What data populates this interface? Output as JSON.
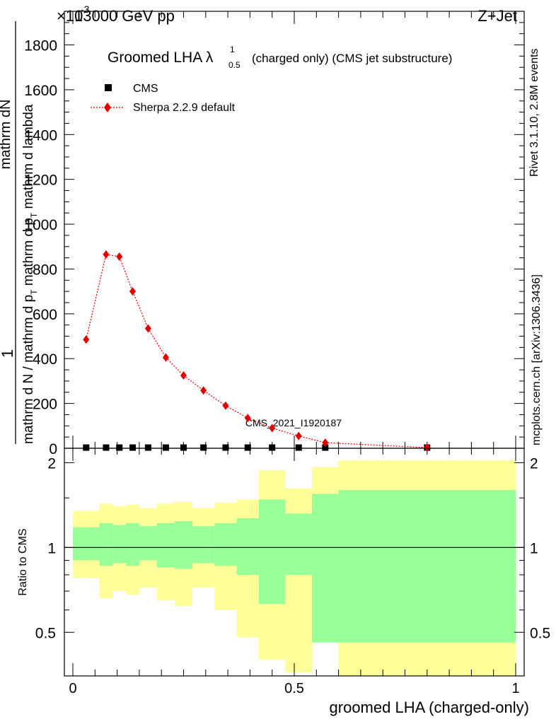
{
  "header": {
    "left": "13000 GeV pp",
    "right": "Z+Jet",
    "exponent_prefix": "×10",
    "exponent": "-3"
  },
  "side_labels": {
    "rivet": "Rivet 3.1.10,  2.8M events",
    "mcplots": "mcplots.cern.ch [arXiv:1306.3436]"
  },
  "watermark": "CMS_2021_I1920187",
  "chart_data": [
    {
      "type": "scatter",
      "title": "Groomed LHA λ",
      "title_sup": "1",
      "title_sub": "0.5",
      "title_suffix": "(charged only) (CMS jet substructure)",
      "ylabel_top": "1",
      "ylabel_num": "mathrm dN",
      "ylabel_den": "mathrm d N / mathrm d p",
      "ylabel_den_sub": "T",
      "ylabel_den_tail": " mathrm d p",
      "ylabel_den_sub2": "T",
      "ylabel_den_tail2": " mathrm d lambda",
      "xlim": [
        0,
        1
      ],
      "ylim": [
        0,
        1950
      ],
      "yticks": [
        0,
        200,
        400,
        600,
        800,
        1000,
        1200,
        1400,
        1600,
        1800
      ],
      "yticklabels": [
        "0",
        "200",
        "400",
        "600",
        "800",
        "1000",
        "1200",
        "1400",
        "1600",
        "1800"
      ],
      "legend_position": "top-left",
      "series": [
        {
          "name": "CMS",
          "color": "#000000",
          "marker": "square",
          "x": [
            0.03,
            0.075,
            0.105,
            0.135,
            0.17,
            0.21,
            0.25,
            0.295,
            0.345,
            0.395,
            0.45,
            0.51,
            0.57,
            0.8
          ],
          "values": [
            3,
            3,
            3,
            3,
            3,
            3,
            3,
            3,
            3,
            3,
            3,
            3,
            3,
            3
          ]
        },
        {
          "name": "Sherpa 2.2.9 default",
          "color": "#e00000",
          "marker": "diamond",
          "line": "dotted",
          "x": [
            0.03,
            0.075,
            0.105,
            0.135,
            0.17,
            0.21,
            0.25,
            0.295,
            0.345,
            0.395,
            0.45,
            0.51,
            0.57,
            0.8
          ],
          "values": [
            485,
            865,
            855,
            700,
            535,
            405,
            325,
            258,
            190,
            135,
            90,
            55,
            25,
            3
          ]
        }
      ]
    },
    {
      "type": "area",
      "ylabel": "Ratio to CMS",
      "xlabel": "groomed LHA (charged-only)",
      "xlim": [
        0,
        1
      ],
      "ylim": [
        0.35,
        2.25
      ],
      "xticks": [
        0,
        0.5,
        1
      ],
      "xticklabels": [
        "0",
        "0.5",
        "1"
      ],
      "yticks": [
        0.5,
        1,
        2
      ],
      "yticklabels": [
        "0.5",
        "1",
        "2"
      ],
      "reference_line": 1,
      "bins": [
        0,
        0.06,
        0.09,
        0.12,
        0.15,
        0.19,
        0.23,
        0.27,
        0.32,
        0.37,
        0.42,
        0.48,
        0.54,
        0.6,
        1.0
      ],
      "bands": [
        {
          "name": "total uncertainty",
          "color": "#ffff99",
          "lower": [
            0.78,
            0.66,
            0.7,
            0.68,
            0.72,
            0.65,
            0.62,
            0.72,
            0.6,
            0.48,
            0.4,
            0.36,
            0.53,
            0.35
          ],
          "upper": [
            1.35,
            1.43,
            1.4,
            1.42,
            1.38,
            1.43,
            1.45,
            1.38,
            1.44,
            1.48,
            1.88,
            1.62,
            1.93,
            2.04
          ]
        },
        {
          "name": "stat uncertainty",
          "color": "#99ff99",
          "lower": [
            0.9,
            0.86,
            0.88,
            0.86,
            0.9,
            0.85,
            0.84,
            0.88,
            0.86,
            0.8,
            0.63,
            0.8,
            0.46,
            0.46
          ],
          "upper": [
            1.18,
            1.22,
            1.2,
            1.22,
            1.19,
            1.22,
            1.24,
            1.19,
            1.22,
            1.27,
            1.48,
            1.32,
            1.55,
            1.6
          ]
        }
      ]
    }
  ]
}
